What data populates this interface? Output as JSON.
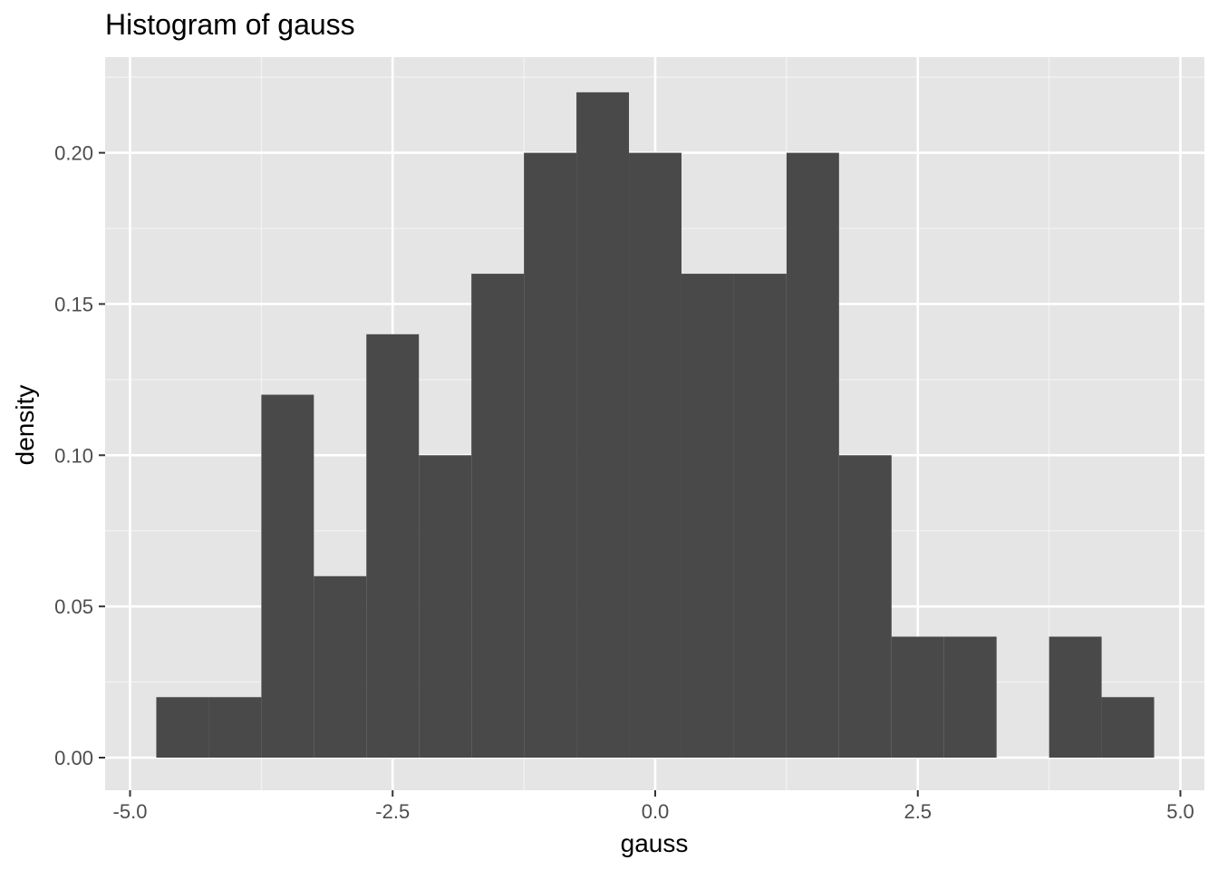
{
  "chart_data": {
    "type": "bar",
    "title": "Histogram of gauss",
    "xlabel": "gauss",
    "ylabel": "density",
    "xlim": [
      -5.0,
      5.0
    ],
    "ylim": [
      0.0,
      0.22
    ],
    "x_ticks": [
      -5.0,
      -2.5,
      0.0,
      2.5,
      5.0
    ],
    "x_tick_labels": [
      "-5.0",
      "-2.5",
      "0.0",
      "2.5",
      "5.0"
    ],
    "y_ticks": [
      0.0,
      0.05,
      0.1,
      0.15,
      0.2
    ],
    "y_tick_labels": [
      "0.00",
      "0.05",
      "0.10",
      "0.15",
      "0.20"
    ],
    "bin_width": 0.5,
    "bins": [
      {
        "start": -4.75,
        "end": -4.25,
        "density": 0.02
      },
      {
        "start": -4.25,
        "end": -3.75,
        "density": 0.02
      },
      {
        "start": -3.75,
        "end": -3.25,
        "density": 0.12
      },
      {
        "start": -3.25,
        "end": -2.75,
        "density": 0.06
      },
      {
        "start": -2.75,
        "end": -2.25,
        "density": 0.14
      },
      {
        "start": -2.25,
        "end": -1.75,
        "density": 0.1
      },
      {
        "start": -1.75,
        "end": -1.25,
        "density": 0.16
      },
      {
        "start": -1.25,
        "end": -0.75,
        "density": 0.2
      },
      {
        "start": -0.75,
        "end": -0.25,
        "density": 0.22
      },
      {
        "start": -0.25,
        "end": 0.25,
        "density": 0.2
      },
      {
        "start": 0.25,
        "end": 0.75,
        "density": 0.16
      },
      {
        "start": 0.75,
        "end": 1.25,
        "density": 0.16
      },
      {
        "start": 1.25,
        "end": 1.75,
        "density": 0.2
      },
      {
        "start": 1.75,
        "end": 2.25,
        "density": 0.1
      },
      {
        "start": 2.25,
        "end": 2.75,
        "density": 0.04
      },
      {
        "start": 2.75,
        "end": 3.25,
        "density": 0.04
      },
      {
        "start": 3.25,
        "end": 3.75,
        "density": 0.0
      },
      {
        "start": 3.75,
        "end": 4.25,
        "density": 0.04
      },
      {
        "start": 4.25,
        "end": 4.75,
        "density": 0.02
      }
    ],
    "grid": true,
    "colors": {
      "panel_background": "#e5e5e5",
      "grid_major": "#ffffff",
      "grid_minor": "#f2f2f2",
      "bar_fill": "#494949",
      "tick_text": "#4d4d4d",
      "tick_mark": "#333333"
    }
  }
}
